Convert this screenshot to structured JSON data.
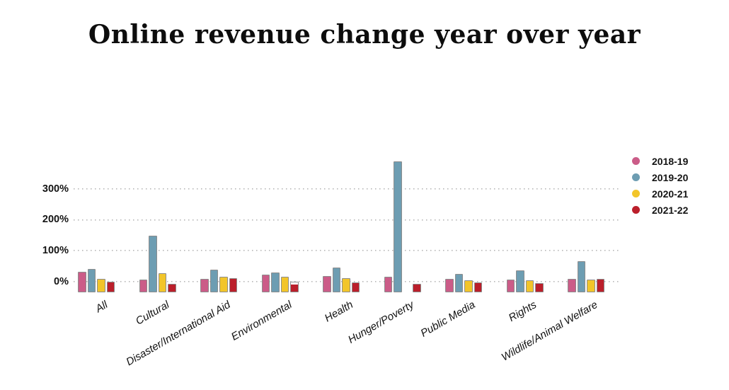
{
  "title": "Online revenue change year over year",
  "chart_data": {
    "type": "bar",
    "title": "Online revenue change year over year",
    "categories": [
      "All",
      "Cultural",
      "Disaster/International Aid",
      "Environmental",
      "Health",
      "Hunger/Poverty",
      "Public Media",
      "Rights",
      "Wildlife/Animal Welfare"
    ],
    "series": [
      {
        "name": "2018-19",
        "color": "#cb5c88",
        "values": [
          30,
          5,
          7,
          21,
          17,
          16,
          8,
          6,
          7
        ]
      },
      {
        "name": "2019-20",
        "color": "#6d9db2",
        "values": [
          40,
          147,
          37,
          28,
          44,
          390,
          23,
          36,
          65
        ]
      },
      {
        "name": "2020-21",
        "color": "#f2c52a",
        "values": [
          8,
          26,
          14,
          16,
          11,
          null,
          4,
          3,
          5
        ]
      },
      {
        "name": "2021-22",
        "color": "#bb1f2b",
        "values": [
          -2,
          -9,
          11,
          -9,
          -3,
          -9,
          -4,
          -5,
          7
        ]
      }
    ],
    "y_axis": {
      "ticks": [
        {
          "label": "300%",
          "value": 300
        },
        {
          "label": "200%",
          "value": 200
        },
        {
          "label": "100%",
          "value": 100
        },
        {
          "label": "0%",
          "value": 0
        }
      ],
      "ylim": [
        -36,
        420
      ]
    },
    "grid": "dotted horizontal gridlines at ticks",
    "legend_position": "right",
    "bar_baseline_note": "all bars rise from the axis minimum (~-36%), so tops mark values; Hunger/Poverty 2020-21 has no bar",
    "special_bars": [
      {
        "category_index": 3,
        "series_index": 3,
        "style": "white_top_gap",
        "note": "outlined to 0% with white gap above the red fill"
      }
    ]
  },
  "colors": {
    "pink": "#cb5c88",
    "blue": "#6d9db2",
    "yellow": "#f2c52a",
    "red": "#bb1f2b",
    "gridline": "#b5b5b5",
    "bar_outline": "#8d8d8d",
    "text": "#141414"
  }
}
